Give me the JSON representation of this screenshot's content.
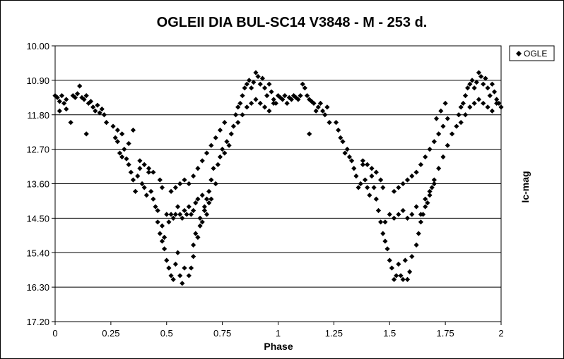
{
  "chart_data": {
    "type": "scatter",
    "title": "OGLEII DIA BUL-SC14 V3848 - M - 253 d.",
    "xlabel": "Phase",
    "ylabel": "Ic-mag",
    "xlim": [
      0,
      2
    ],
    "ylim": [
      10.0,
      17.2
    ],
    "y_inverted": true,
    "x_ticks": [
      "0",
      "0.25",
      "0.5",
      "0.75",
      "1",
      "1.25",
      "1.5",
      "1.75",
      "2"
    ],
    "y_ticks": [
      "10.00",
      "10.90",
      "11.80",
      "12.70",
      "13.60",
      "14.50",
      "15.40",
      "16.30",
      "17.20"
    ],
    "grid": "horizontal",
    "legend_position": "top-right",
    "marker": "diamond",
    "color": "#000000",
    "series": [
      {
        "name": "OGLE",
        "points": [
          [
            0.0,
            11.3
          ],
          [
            0.01,
            11.35
          ],
          [
            0.02,
            11.45
          ],
          [
            0.03,
            11.3
          ],
          [
            0.04,
            11.5
          ],
          [
            0.05,
            11.4
          ],
          [
            0.02,
            11.7
          ],
          [
            0.05,
            11.65
          ],
          [
            0.08,
            11.3
          ],
          [
            0.09,
            11.35
          ],
          [
            0.1,
            11.25
          ],
          [
            0.11,
            11.05
          ],
          [
            0.12,
            11.35
          ],
          [
            0.13,
            11.4
          ],
          [
            0.14,
            11.3
          ],
          [
            0.15,
            11.5
          ],
          [
            0.16,
            11.45
          ],
          [
            0.17,
            11.6
          ],
          [
            0.18,
            11.7
          ],
          [
            0.19,
            11.55
          ],
          [
            0.2,
            11.75
          ],
          [
            0.21,
            11.65
          ],
          [
            0.22,
            11.8
          ],
          [
            0.07,
            12.0
          ],
          [
            0.14,
            12.3
          ],
          [
            0.23,
            12.0
          ],
          [
            0.26,
            12.1
          ],
          [
            0.27,
            12.4
          ],
          [
            0.28,
            12.5
          ],
          [
            0.29,
            12.8
          ],
          [
            0.3,
            12.9
          ],
          [
            0.31,
            12.7
          ],
          [
            0.32,
            12.95
          ],
          [
            0.33,
            13.1
          ],
          [
            0.34,
            13.3
          ],
          [
            0.35,
            13.5
          ],
          [
            0.36,
            13.8
          ],
          [
            0.37,
            13.4
          ],
          [
            0.38,
            13.2
          ],
          [
            0.39,
            13.6
          ],
          [
            0.4,
            13.7
          ],
          [
            0.41,
            13.9
          ],
          [
            0.42,
            13.3
          ],
          [
            0.43,
            13.8
          ],
          [
            0.44,
            14.0
          ],
          [
            0.45,
            14.2
          ],
          [
            0.46,
            14.3
          ],
          [
            0.47,
            13.5
          ],
          [
            0.48,
            13.7
          ],
          [
            0.38,
            13.0
          ],
          [
            0.4,
            13.1
          ],
          [
            0.42,
            13.2
          ],
          [
            0.44,
            13.3
          ],
          [
            0.3,
            12.3
          ],
          [
            0.33,
            12.55
          ],
          [
            0.35,
            12.2
          ],
          [
            0.28,
            12.2
          ],
          [
            0.46,
            14.6
          ],
          [
            0.47,
            14.9
          ],
          [
            0.48,
            15.1
          ],
          [
            0.49,
            15.3
          ],
          [
            0.5,
            15.6
          ],
          [
            0.51,
            15.8
          ],
          [
            0.52,
            16.0
          ],
          [
            0.53,
            16.1
          ],
          [
            0.54,
            15.7
          ],
          [
            0.55,
            15.4
          ],
          [
            0.56,
            16.0
          ],
          [
            0.57,
            16.2
          ],
          [
            0.58,
            15.8
          ],
          [
            0.48,
            14.7
          ],
          [
            0.49,
            15.0
          ],
          [
            0.5,
            14.4
          ],
          [
            0.51,
            14.6
          ],
          [
            0.52,
            14.4
          ],
          [
            0.53,
            14.5
          ],
          [
            0.54,
            14.4
          ],
          [
            0.55,
            14.2
          ],
          [
            0.56,
            14.4
          ],
          [
            0.57,
            14.5
          ],
          [
            0.58,
            14.3
          ],
          [
            0.59,
            14.4
          ],
          [
            0.6,
            14.2
          ],
          [
            0.61,
            14.4
          ],
          [
            0.62,
            14.3
          ],
          [
            0.63,
            14.1
          ],
          [
            0.64,
            14.0
          ],
          [
            0.65,
            14.5
          ],
          [
            0.66,
            13.9
          ],
          [
            0.67,
            14.2
          ],
          [
            0.68,
            14.0
          ],
          [
            0.69,
            13.8
          ],
          [
            0.7,
            13.5
          ],
          [
            0.71,
            13.2
          ],
          [
            0.72,
            13.6
          ],
          [
            0.73,
            13.1
          ],
          [
            0.74,
            12.9
          ],
          [
            0.75,
            12.7
          ],
          [
            0.76,
            12.8
          ],
          [
            0.77,
            12.5
          ],
          [
            0.78,
            12.6
          ],
          [
            0.79,
            12.3
          ],
          [
            0.8,
            12.1
          ],
          [
            0.52,
            13.8
          ],
          [
            0.54,
            13.7
          ],
          [
            0.56,
            13.6
          ],
          [
            0.58,
            13.5
          ],
          [
            0.6,
            13.6
          ],
          [
            0.62,
            13.4
          ],
          [
            0.64,
            13.2
          ],
          [
            0.66,
            13.0
          ],
          [
            0.68,
            12.8
          ],
          [
            0.7,
            12.6
          ],
          [
            0.72,
            12.4
          ],
          [
            0.74,
            12.2
          ],
          [
            0.76,
            12.0
          ],
          [
            0.62,
            15.2
          ],
          [
            0.63,
            14.9
          ],
          [
            0.64,
            15.0
          ],
          [
            0.65,
            14.7
          ],
          [
            0.66,
            14.6
          ],
          [
            0.67,
            14.3
          ],
          [
            0.68,
            14.4
          ],
          [
            0.69,
            14.1
          ],
          [
            0.7,
            14.0
          ],
          [
            0.6,
            16.0
          ],
          [
            0.61,
            15.8
          ],
          [
            0.62,
            15.5
          ],
          [
            0.81,
            11.8
          ],
          [
            0.82,
            11.6
          ],
          [
            0.83,
            11.5
          ],
          [
            0.84,
            11.3
          ],
          [
            0.85,
            11.1
          ],
          [
            0.86,
            11.0
          ],
          [
            0.87,
            10.9
          ],
          [
            0.88,
            11.1
          ],
          [
            0.89,
            10.95
          ],
          [
            0.9,
            10.7
          ],
          [
            0.91,
            10.8
          ],
          [
            0.92,
            11.0
          ],
          [
            0.93,
            10.85
          ],
          [
            0.94,
            11.1
          ],
          [
            0.95,
            11.3
          ],
          [
            0.96,
            11.0
          ],
          [
            0.97,
            11.2
          ],
          [
            0.98,
            11.4
          ],
          [
            0.99,
            11.5
          ],
          [
            0.82,
            12.0
          ],
          [
            0.84,
            11.8
          ],
          [
            0.86,
            11.6
          ],
          [
            0.88,
            11.5
          ],
          [
            0.9,
            11.4
          ],
          [
            0.92,
            11.5
          ],
          [
            0.94,
            11.6
          ],
          [
            0.96,
            11.7
          ],
          [
            0.98,
            11.5
          ],
          [
            1.0,
            11.3
          ],
          [
            1.01,
            11.35
          ],
          [
            1.02,
            11.4
          ],
          [
            1.03,
            11.3
          ],
          [
            1.04,
            11.5
          ],
          [
            1.05,
            11.35
          ],
          [
            1.06,
            11.4
          ],
          [
            1.07,
            11.3
          ],
          [
            1.08,
            11.35
          ],
          [
            1.09,
            11.4
          ],
          [
            1.1,
            11.3
          ],
          [
            1.11,
            11.0
          ],
          [
            1.12,
            11.1
          ],
          [
            1.13,
            11.3
          ],
          [
            1.14,
            11.4
          ],
          [
            1.15,
            11.45
          ],
          [
            1.16,
            11.5
          ],
          [
            1.17,
            11.7
          ],
          [
            1.18,
            11.6
          ],
          [
            1.19,
            11.5
          ],
          [
            1.2,
            11.7
          ],
          [
            1.21,
            11.8
          ],
          [
            1.22,
            11.6
          ],
          [
            1.23,
            12.0
          ],
          [
            1.14,
            12.3
          ],
          [
            1.26,
            12.0
          ],
          [
            1.27,
            12.2
          ],
          [
            1.28,
            12.4
          ],
          [
            1.29,
            12.5
          ],
          [
            1.3,
            12.8
          ],
          [
            1.31,
            12.7
          ],
          [
            1.32,
            12.9
          ],
          [
            1.33,
            13.0
          ],
          [
            1.34,
            13.2
          ],
          [
            1.35,
            13.4
          ],
          [
            1.36,
            13.7
          ],
          [
            1.37,
            13.6
          ],
          [
            1.38,
            13.1
          ],
          [
            1.39,
            13.5
          ],
          [
            1.4,
            13.7
          ],
          [
            1.41,
            13.9
          ],
          [
            1.42,
            13.4
          ],
          [
            1.43,
            13.7
          ],
          [
            1.44,
            14.0
          ],
          [
            1.45,
            14.3
          ],
          [
            1.46,
            13.5
          ],
          [
            1.47,
            13.7
          ],
          [
            1.38,
            13.0
          ],
          [
            1.4,
            13.1
          ],
          [
            1.42,
            13.2
          ],
          [
            1.44,
            13.3
          ],
          [
            1.46,
            14.6
          ],
          [
            1.47,
            14.9
          ],
          [
            1.48,
            15.1
          ],
          [
            1.49,
            15.3
          ],
          [
            1.5,
            15.6
          ],
          [
            1.51,
            15.8
          ],
          [
            1.52,
            16.1
          ],
          [
            1.53,
            16.0
          ],
          [
            1.54,
            15.7
          ],
          [
            1.55,
            16.0
          ],
          [
            1.56,
            16.1
          ],
          [
            1.57,
            15.6
          ],
          [
            1.58,
            16.1
          ],
          [
            1.59,
            15.9
          ],
          [
            1.6,
            15.5
          ],
          [
            1.48,
            14.6
          ],
          [
            1.5,
            14.4
          ],
          [
            1.52,
            14.5
          ],
          [
            1.54,
            14.4
          ],
          [
            1.56,
            14.3
          ],
          [
            1.58,
            14.5
          ],
          [
            1.6,
            14.4
          ],
          [
            1.62,
            14.2
          ],
          [
            1.64,
            14.4
          ],
          [
            1.66,
            14.0
          ],
          [
            1.68,
            13.8
          ],
          [
            1.7,
            13.6
          ],
          [
            1.72,
            13.2
          ],
          [
            1.74,
            12.9
          ],
          [
            1.76,
            12.6
          ],
          [
            1.78,
            12.3
          ],
          [
            1.8,
            12.1
          ],
          [
            1.52,
            13.8
          ],
          [
            1.54,
            13.7
          ],
          [
            1.56,
            13.6
          ],
          [
            1.58,
            13.5
          ],
          [
            1.6,
            13.4
          ],
          [
            1.62,
            13.3
          ],
          [
            1.64,
            13.1
          ],
          [
            1.66,
            12.9
          ],
          [
            1.68,
            12.7
          ],
          [
            1.7,
            12.5
          ],
          [
            1.72,
            12.3
          ],
          [
            1.74,
            12.1
          ],
          [
            1.76,
            11.9
          ],
          [
            1.62,
            15.2
          ],
          [
            1.63,
            14.9
          ],
          [
            1.64,
            14.6
          ],
          [
            1.65,
            14.4
          ],
          [
            1.66,
            14.2
          ],
          [
            1.67,
            14.1
          ],
          [
            1.68,
            13.9
          ],
          [
            1.69,
            13.7
          ],
          [
            1.7,
            13.5
          ],
          [
            1.81,
            11.8
          ],
          [
            1.82,
            11.6
          ],
          [
            1.83,
            11.5
          ],
          [
            1.84,
            11.3
          ],
          [
            1.85,
            11.1
          ],
          [
            1.86,
            11.0
          ],
          [
            1.87,
            10.9
          ],
          [
            1.88,
            11.1
          ],
          [
            1.89,
            10.95
          ],
          [
            1.9,
            10.7
          ],
          [
            1.91,
            10.8
          ],
          [
            1.92,
            11.0
          ],
          [
            1.93,
            10.85
          ],
          [
            1.94,
            11.1
          ],
          [
            1.95,
            11.3
          ],
          [
            1.96,
            11.0
          ],
          [
            1.97,
            11.2
          ],
          [
            1.98,
            11.4
          ],
          [
            1.99,
            11.5
          ],
          [
            2.0,
            11.6
          ],
          [
            1.82,
            12.0
          ],
          [
            1.84,
            11.8
          ],
          [
            1.86,
            11.6
          ],
          [
            1.88,
            11.5
          ],
          [
            1.9,
            11.4
          ],
          [
            1.92,
            11.5
          ],
          [
            1.94,
            11.6
          ],
          [
            1.96,
            11.7
          ],
          [
            1.98,
            11.5
          ],
          [
            1.71,
            11.9
          ],
          [
            1.73,
            11.7
          ],
          [
            1.75,
            11.5
          ]
        ]
      }
    ]
  }
}
